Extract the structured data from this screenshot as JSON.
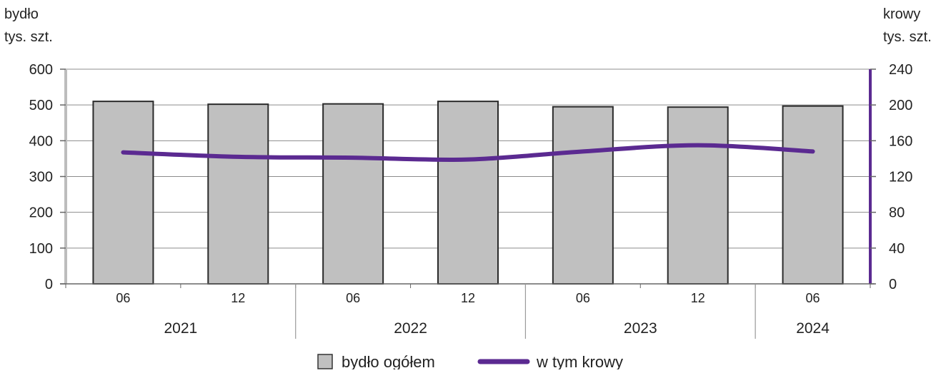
{
  "chart_data": {
    "type": "bar",
    "left_axis": {
      "label_line1": "bydło",
      "label_line2": "tys. szt.",
      "ylim": [
        0,
        600
      ],
      "ticks": [
        "0",
        "100",
        "200",
        "300",
        "400",
        "500",
        "600"
      ]
    },
    "right_axis": {
      "label_line1": "krowy",
      "label_line2": "tys. szt.",
      "ylim": [
        0,
        240
      ],
      "ticks": [
        "0",
        "40",
        "80",
        "120",
        "160",
        "200",
        "240"
      ],
      "color": "#5b2a91"
    },
    "categories": [
      "06",
      "12",
      "06",
      "12",
      "06",
      "12",
      "06"
    ],
    "years": [
      {
        "label": "2021",
        "span": [
          0,
          1
        ]
      },
      {
        "label": "2022",
        "span": [
          2,
          3
        ]
      },
      {
        "label": "2023",
        "span": [
          4,
          5
        ]
      },
      {
        "label": "2024",
        "span": [
          6,
          6
        ]
      }
    ],
    "series": [
      {
        "name": "bydło ogółem",
        "kind": "bar",
        "axis": "left",
        "color": "#c0c0c0",
        "values": [
          510,
          502,
          503,
          510,
          495,
          494,
          497
        ]
      },
      {
        "name": "w tym krowy",
        "kind": "line",
        "axis": "right",
        "color": "#5b2a91",
        "values": [
          147,
          142,
          141,
          139,
          148,
          155,
          148
        ]
      }
    ],
    "grid": true,
    "legend_position": "bottom"
  }
}
